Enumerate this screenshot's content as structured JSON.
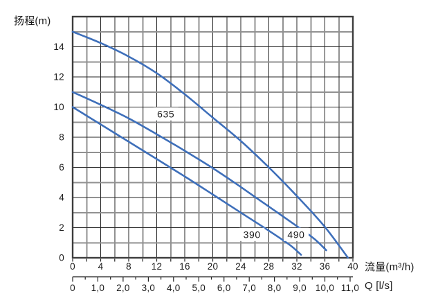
{
  "chart_data": {
    "type": "line",
    "title": "",
    "ylabel": "扬程(m)",
    "xlabel": "流量(m³/h)",
    "x2label": "Q [l/s]",
    "xlim": [
      0,
      40
    ],
    "ylim": [
      0,
      16
    ],
    "grid": true,
    "legend_position": "labels-on-curves",
    "x_tick_values": [
      0,
      4,
      8,
      12,
      16,
      20,
      24,
      28,
      32,
      36,
      40
    ],
    "x_tick_labels": [
      "0",
      "4",
      "8",
      "12",
      "16",
      "20",
      "24",
      "28",
      "32",
      "36",
      "40"
    ],
    "y_tick_values": [
      0,
      2,
      4,
      6,
      8,
      10,
      12,
      14
    ],
    "y_tick_labels": [
      "0",
      "2",
      "4",
      "6",
      "8",
      "10",
      "12",
      "14"
    ],
    "x_minor_step": 2,
    "y_minor_step": 1,
    "x2_tick_values": [
      0,
      1,
      2,
      3,
      4,
      5,
      6,
      7,
      8,
      9,
      10,
      11
    ],
    "x2_tick_labels": [
      "0",
      "1,0",
      "2,0",
      "3,0",
      "4,0",
      "5,0",
      "6,0",
      "7,0",
      "8,0",
      "9,0",
      "10,0",
      "11,0"
    ],
    "x2_minor_step": 0.5,
    "x2_unit_in_x": 3.6,
    "curve_color": "#3e6fba",
    "series": [
      {
        "name": "635",
        "label_at": [
          13.3,
          9.55
        ],
        "points": [
          [
            0,
            15
          ],
          [
            4,
            14.25
          ],
          [
            8,
            13.35
          ],
          [
            12,
            12.25
          ],
          [
            16,
            10.85
          ],
          [
            20,
            9.3
          ],
          [
            24,
            7.75
          ],
          [
            28,
            6.0
          ],
          [
            32,
            4.1
          ],
          [
            36,
            2.05
          ],
          [
            39.3,
            0
          ]
        ]
      },
      {
        "name": "490",
        "label_at": [
          31.9,
          1.55
        ],
        "points": [
          [
            0,
            11
          ],
          [
            4,
            10.15
          ],
          [
            8,
            9.25
          ],
          [
            12,
            8.2
          ],
          [
            16,
            7.1
          ],
          [
            20,
            5.95
          ],
          [
            24,
            4.7
          ],
          [
            28,
            3.4
          ],
          [
            32,
            2.1
          ],
          [
            34.5,
            1.25
          ],
          [
            36.2,
            0.5
          ]
        ]
      },
      {
        "name": "390",
        "label_at": [
          25.6,
          1.55
        ],
        "points": [
          [
            0,
            10
          ],
          [
            4,
            8.85
          ],
          [
            8,
            7.7
          ],
          [
            12,
            6.55
          ],
          [
            16,
            5.4
          ],
          [
            20,
            4.2
          ],
          [
            24,
            3.0
          ],
          [
            28,
            1.8
          ],
          [
            31,
            0.85
          ],
          [
            32.6,
            0.2
          ]
        ]
      }
    ]
  },
  "colors": {
    "background": "#ffffff",
    "curve": "#3e6fba",
    "grid_line_dark": "#242424",
    "grid_line_light": "#919191",
    "border": "#3d3d3d",
    "tick": "#242424",
    "text": "#1b1b1b"
  }
}
